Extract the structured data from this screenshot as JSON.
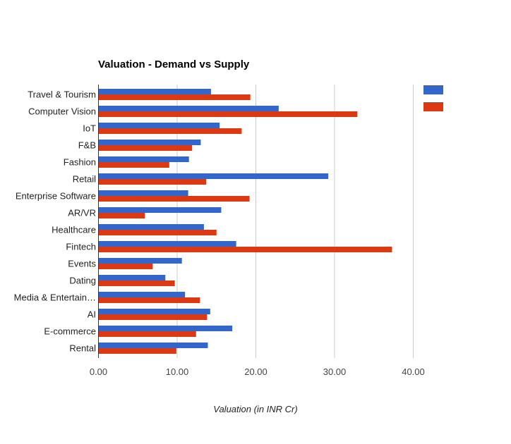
{
  "chart_data": {
    "type": "bar",
    "orientation": "horizontal",
    "title": "Valuation - Demand vs Supply",
    "xlabel": "Valuation (in INR Cr)",
    "ylabel": "",
    "xlim": [
      0,
      40
    ],
    "ticks": [
      {
        "value": 0,
        "label": "0.00"
      },
      {
        "value": 10,
        "label": "10.00"
      },
      {
        "value": 20,
        "label": "20.00"
      },
      {
        "value": 30,
        "label": "30.00"
      },
      {
        "value": 40,
        "label": "40.00"
      }
    ],
    "grid": true,
    "legend_position": "top-right",
    "categories": [
      "Travel & Tourism",
      "Computer Vision",
      "IoT",
      "F&B",
      "Fashion",
      "Retail",
      "Enterprise Software",
      "AR/VR",
      "Healthcare",
      "Fintech",
      "Events",
      "Dating",
      "Media & Entertain…",
      "AI",
      "E-commerce",
      "Rental"
    ],
    "series": [
      {
        "name": "",
        "color": "#3366cc",
        "values": [
          14.3,
          22.9,
          15.4,
          13.0,
          11.5,
          29.2,
          11.4,
          15.6,
          13.4,
          17.5,
          10.6,
          8.5,
          11.0,
          14.2,
          17.0,
          13.9
        ]
      },
      {
        "name": "",
        "color": "#dc3912",
        "values": [
          19.3,
          32.9,
          18.2,
          11.9,
          9.0,
          13.7,
          19.2,
          5.9,
          15.0,
          37.3,
          6.9,
          9.7,
          12.9,
          13.8,
          12.4,
          9.9
        ]
      }
    ]
  }
}
